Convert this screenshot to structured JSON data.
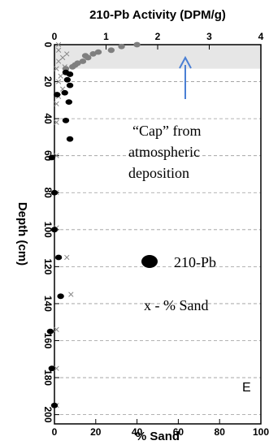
{
  "chart_data": {
    "type": "scatter",
    "title": "210-Pb Activity (DPM/g)",
    "top_axis": {
      "label": "210-Pb Activity (DPM/g)",
      "ticks": [
        "0",
        "1",
        "2",
        "3",
        "4"
      ],
      "range": [
        0,
        4
      ]
    },
    "bottom_axis": {
      "label": "% Sand",
      "ticks": [
        "0",
        "20",
        "40",
        "60",
        "80",
        "100"
      ],
      "range": [
        0,
        100
      ]
    },
    "y_axis": {
      "label": "Depth (cm)",
      "ticks": [
        "0",
        "20",
        "40",
        "60",
        "80",
        "100",
        "120",
        "140",
        "160",
        "180",
        "200"
      ],
      "range": [
        0,
        205
      ],
      "inverted": true,
      "tick_labels_rotated": true
    },
    "grid": "horizontal dashed lines every 20 cm",
    "shaded_band": {
      "from_depth": 0,
      "to_depth": 13,
      "color": "#e6e6e6"
    },
    "series": [
      {
        "name": "210-Pb",
        "axis": "top",
        "marker": "filled-dot",
        "points": [
          {
            "x": 1.6,
            "y": 0
          },
          {
            "x": 1.3,
            "y": 1
          },
          {
            "x": 1.1,
            "y": 3
          },
          {
            "x": 0.85,
            "y": 4
          },
          {
            "x": 0.75,
            "y": 5
          },
          {
            "x": 0.6,
            "y": 6
          },
          {
            "x": 0.65,
            "y": 7
          },
          {
            "x": 0.55,
            "y": 9
          },
          {
            "x": 0.45,
            "y": 10
          },
          {
            "x": 0.4,
            "y": 11
          },
          {
            "x": 0.35,
            "y": 12
          },
          {
            "x": 0.22,
            "y": 13
          },
          {
            "x": 0.22,
            "y": 15
          },
          {
            "x": 0.3,
            "y": 16
          },
          {
            "x": 0.25,
            "y": 19
          },
          {
            "x": 0.3,
            "y": 22
          },
          {
            "x": 0.2,
            "y": 26
          },
          {
            "x": 0.05,
            "y": 27
          },
          {
            "x": 0.28,
            "y": 31
          },
          {
            "x": 0.22,
            "y": 41
          },
          {
            "x": 0.3,
            "y": 51
          },
          {
            "x": -0.05,
            "y": 61
          },
          {
            "x": 0.0,
            "y": 80
          },
          {
            "x": 0.0,
            "y": 100
          },
          {
            "x": 0.08,
            "y": 115
          },
          {
            "x": 0.12,
            "y": 136
          },
          {
            "x": -0.08,
            "y": 155
          },
          {
            "x": -0.05,
            "y": 175
          },
          {
            "x": 0.0,
            "y": 195
          }
        ]
      },
      {
        "name": "% Sand",
        "axis": "bottom",
        "marker": "x",
        "points": [
          {
            "x": 2,
            "y": 0
          },
          {
            "x": 2,
            "y": 3
          },
          {
            "x": 6,
            "y": 5
          },
          {
            "x": 4,
            "y": 7
          },
          {
            "x": 2,
            "y": 9
          },
          {
            "x": 5,
            "y": 12
          },
          {
            "x": 1,
            "y": 13
          },
          {
            "x": 3,
            "y": 17
          },
          {
            "x": 2,
            "y": 20
          },
          {
            "x": 4,
            "y": 24
          },
          {
            "x": 2,
            "y": 28
          },
          {
            "x": 1,
            "y": 32
          },
          {
            "x": 1,
            "y": 42
          },
          {
            "x": 1,
            "y": 60
          },
          {
            "x": 1,
            "y": 80
          },
          {
            "x": 1,
            "y": 99
          },
          {
            "x": 6,
            "y": 115
          },
          {
            "x": 8,
            "y": 135
          },
          {
            "x": 1,
            "y": 154
          },
          {
            "x": 1,
            "y": 175
          },
          {
            "x": 1,
            "y": 195
          }
        ]
      }
    ],
    "annotations": {
      "cap_lines": [
        "“Cap” from",
        "atmospheric",
        "deposition"
      ],
      "legend_pb_label": "210-Pb",
      "legend_sand_label": "x - % Sand",
      "panel_letter": "E"
    },
    "colors": {
      "pb_surface": "#7f7f7f",
      "pb_deep": "#000000",
      "sand": "#888888",
      "arrow": "#4a7fd4",
      "band": "#e6e6e6"
    }
  }
}
